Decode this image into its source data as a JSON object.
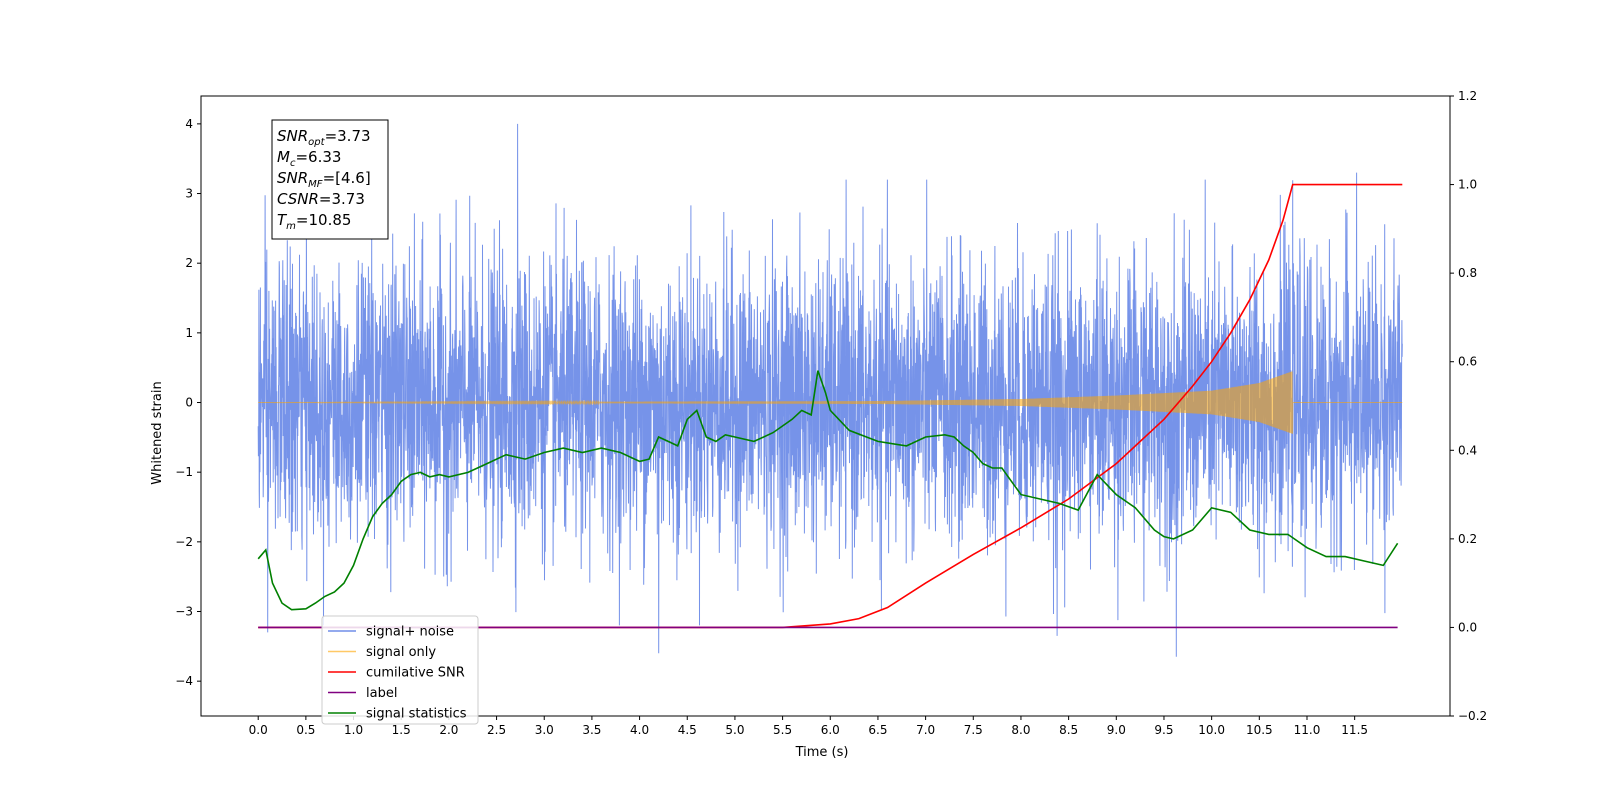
{
  "chart_data": {
    "type": "line",
    "xlabel": "Time (s)",
    "ylabel": "Whitened strain",
    "ylabel_right": "",
    "xlim": [
      -0.6,
      12.5
    ],
    "ylim": [
      -4.5,
      4.4
    ],
    "ylim_right": [
      -0.2,
      1.2
    ],
    "x_ticks": [
      "0.0",
      "0.5",
      "1.0",
      "1.5",
      "2.0",
      "2.5",
      "3.0",
      "3.5",
      "4.0",
      "4.5",
      "5.0",
      "5.5",
      "6.0",
      "6.5",
      "7.0",
      "7.5",
      "8.0",
      "8.5",
      "9.0",
      "9.5",
      "10.0",
      "10.5",
      "11.0",
      "11.5"
    ],
    "y_ticks": [
      "4",
      "3",
      "2",
      "1",
      "0",
      "−1",
      "−2",
      "−3",
      "−4"
    ],
    "y_ticks_right": [
      "1.2",
      "1.0",
      "0.8",
      "0.6",
      "0.4",
      "0.2",
      "0.0",
      "−0.2"
    ],
    "grid": false,
    "legend_position": "lower-left",
    "annotation": {
      "lines": [
        {
          "base": "SNR",
          "sub": "opt",
          "value": "=3.73"
        },
        {
          "base": "M",
          "sub": "c",
          "value": "=6.33"
        },
        {
          "base": "SNR",
          "sub": "MF",
          "value": "=[4.6]"
        },
        {
          "base": "CSNR",
          "sub": "",
          "value": "=3.73"
        },
        {
          "base": "T",
          "sub": "m",
          "value": "=10.85"
        }
      ]
    },
    "series": [
      {
        "name": "signal+ noise",
        "axis": "left",
        "color": "#4169e1",
        "kind": "noise",
        "x_range": [
          0.0,
          12.0
        ],
        "amplitude_sd": 1.0,
        "peaks": [
          [
            2.72,
            4.0
          ],
          [
            11.52,
            3.3
          ],
          [
            4.2,
            -3.6
          ],
          [
            9.63,
            -3.65
          ],
          [
            8.38,
            -3.35
          ],
          [
            0.1,
            -3.3
          ]
        ]
      },
      {
        "name": "signal only",
        "axis": "left",
        "color": "#ffa500",
        "kind": "chirp",
        "x_range": [
          0.0,
          12.0
        ],
        "merger_time": 10.85,
        "envelope": [
          [
            0.0,
            0.0
          ],
          [
            6.5,
            0.02
          ],
          [
            8.0,
            0.05
          ],
          [
            9.0,
            0.1
          ],
          [
            10.0,
            0.17
          ],
          [
            10.5,
            0.28
          ],
          [
            10.85,
            0.45
          ]
        ]
      },
      {
        "name": "cumilative SNR",
        "axis": "right",
        "color": "#ff0000",
        "x": [
          0.0,
          5.5,
          6.0,
          6.3,
          6.6,
          7.0,
          7.5,
          8.0,
          8.5,
          9.0,
          9.5,
          9.8,
          10.0,
          10.2,
          10.4,
          10.6,
          10.75,
          10.85,
          11.0,
          12.0
        ],
        "y": [
          0.0,
          0.0,
          0.008,
          0.02,
          0.045,
          0.1,
          0.165,
          0.225,
          0.29,
          0.37,
          0.47,
          0.545,
          0.6,
          0.665,
          0.74,
          0.83,
          0.92,
          1.0,
          1.0,
          1.0
        ]
      },
      {
        "name": "label",
        "axis": "right",
        "color": "#800080",
        "x": [
          0.0,
          11.95
        ],
        "y": [
          0.0,
          0.0
        ]
      },
      {
        "name": "signal statistics",
        "axis": "right",
        "color": "#008000",
        "x": [
          0.0,
          0.08,
          0.15,
          0.25,
          0.35,
          0.5,
          0.6,
          0.7,
          0.8,
          0.9,
          1.0,
          1.1,
          1.2,
          1.3,
          1.4,
          1.5,
          1.6,
          1.7,
          1.8,
          1.9,
          2.0,
          2.2,
          2.4,
          2.6,
          2.8,
          3.0,
          3.2,
          3.4,
          3.6,
          3.8,
          4.0,
          4.1,
          4.2,
          4.3,
          4.4,
          4.5,
          4.6,
          4.7,
          4.8,
          4.9,
          5.0,
          5.2,
          5.4,
          5.6,
          5.7,
          5.8,
          5.87,
          5.95,
          6.0,
          6.2,
          6.5,
          6.8,
          7.0,
          7.2,
          7.3,
          7.4,
          7.5,
          7.6,
          7.7,
          7.8,
          7.9,
          8.0,
          8.2,
          8.4,
          8.6,
          8.8,
          9.0,
          9.2,
          9.4,
          9.5,
          9.6,
          9.8,
          10.0,
          10.2,
          10.4,
          10.6,
          10.8,
          11.0,
          11.2,
          11.4,
          11.6,
          11.8,
          11.95
        ],
        "y": [
          0.155,
          0.175,
          0.1,
          0.055,
          0.04,
          0.042,
          0.055,
          0.07,
          0.08,
          0.1,
          0.14,
          0.2,
          0.25,
          0.28,
          0.3,
          0.33,
          0.345,
          0.35,
          0.34,
          0.345,
          0.34,
          0.35,
          0.37,
          0.39,
          0.38,
          0.395,
          0.405,
          0.395,
          0.405,
          0.395,
          0.375,
          0.38,
          0.43,
          0.42,
          0.41,
          0.47,
          0.49,
          0.43,
          0.42,
          0.435,
          0.43,
          0.42,
          0.44,
          0.47,
          0.49,
          0.48,
          0.58,
          0.53,
          0.49,
          0.445,
          0.42,
          0.41,
          0.43,
          0.435,
          0.43,
          0.41,
          0.395,
          0.37,
          0.36,
          0.36,
          0.33,
          0.3,
          0.29,
          0.28,
          0.265,
          0.345,
          0.3,
          0.27,
          0.22,
          0.205,
          0.2,
          0.22,
          0.27,
          0.26,
          0.22,
          0.21,
          0.21,
          0.18,
          0.16,
          0.16,
          0.15,
          0.14,
          0.19
        ]
      }
    ]
  }
}
